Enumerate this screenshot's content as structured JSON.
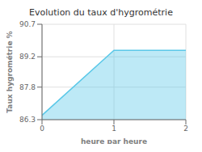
{
  "chart_data": {
    "type": "area",
    "title": "Evolution du taux d'hygrométrie",
    "xlabel": "heure par heure",
    "ylabel": "Taux hygrométrie %",
    "x": [
      0,
      1,
      2
    ],
    "values": [
      86.5,
      89.5,
      89.5
    ],
    "color": "#5bc8e8",
    "xlim": [
      0,
      2
    ],
    "ylim": [
      86.3,
      90.7
    ],
    "xticks": [
      0,
      1,
      2
    ],
    "yticks": [
      86.3,
      87.8,
      89.2,
      90.7
    ],
    "grid": true
  }
}
